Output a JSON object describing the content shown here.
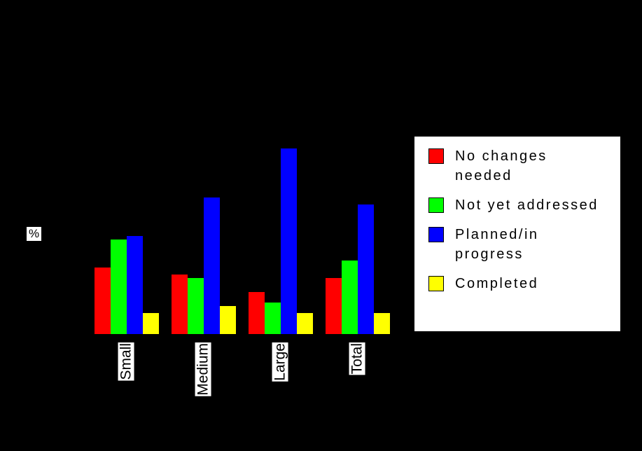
{
  "chart_data": {
    "type": "bar",
    "y_label": "%",
    "categories": [
      "Small",
      "Medium",
      "Large",
      "Total"
    ],
    "series": [
      {
        "name": "No changes needed",
        "color": "#ff0000",
        "values": [
          19,
          17,
          12,
          16
        ]
      },
      {
        "name": "Not yet addressed",
        "color": "#00ff00",
        "values": [
          27,
          16,
          9,
          21
        ]
      },
      {
        "name": "Planned/in progress",
        "color": "#0000ff",
        "values": [
          28,
          39,
          53,
          37
        ]
      },
      {
        "name": "Completed",
        "color": "#ffff00",
        "values": [
          6,
          8,
          6,
          6
        ]
      }
    ],
    "ylim": [
      0,
      60
    ],
    "legend": "right"
  }
}
